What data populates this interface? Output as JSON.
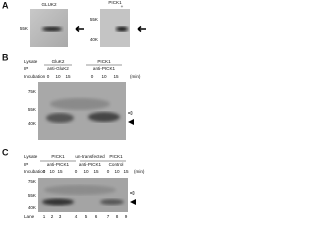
{
  "panels": [
    {
      "label": "A",
      "blots": [
        {
          "title": "GLUK2",
          "markers": [
            "55K"
          ]
        },
        {
          "title": "PICK1",
          "lanes": [
            "+"
          ],
          "markers": [
            "55K",
            "40K"
          ]
        }
      ]
    },
    {
      "label": "B",
      "rows": [
        {
          "head": "Lysate",
          "cells": [
            "GluK2",
            "PICK1"
          ]
        },
        {
          "head": "IP",
          "cells": [
            "anti-GluK2",
            "anti-PICK1"
          ]
        },
        {
          "head": "Incubation",
          "cells": [
            "0",
            "10",
            "15",
            "0",
            "10",
            "15"
          ],
          "unit": "(min)"
        }
      ],
      "markers": [
        "75K",
        "55K",
        "40K"
      ]
    },
    {
      "label": "C",
      "rows": [
        {
          "head": "Lysate",
          "cells": [
            "PICK1",
            "un-transfected",
            "PICK1"
          ]
        },
        {
          "head": "IP",
          "cells": [
            "anti-PICK1",
            "anti-PICK1",
            "Control"
          ]
        },
        {
          "head": "Incubation",
          "cells": [
            "0",
            "10",
            "15",
            "0",
            "10",
            "15",
            "0",
            "10",
            "15"
          ],
          "unit": "(min)"
        }
      ],
      "markers": [
        "75K",
        "55K",
        "40K"
      ],
      "lanes": {
        "head": "Lane",
        "cells": [
          "1",
          "2",
          "3",
          "4",
          "5",
          "6",
          "7",
          "8",
          "9"
        ]
      }
    }
  ]
}
